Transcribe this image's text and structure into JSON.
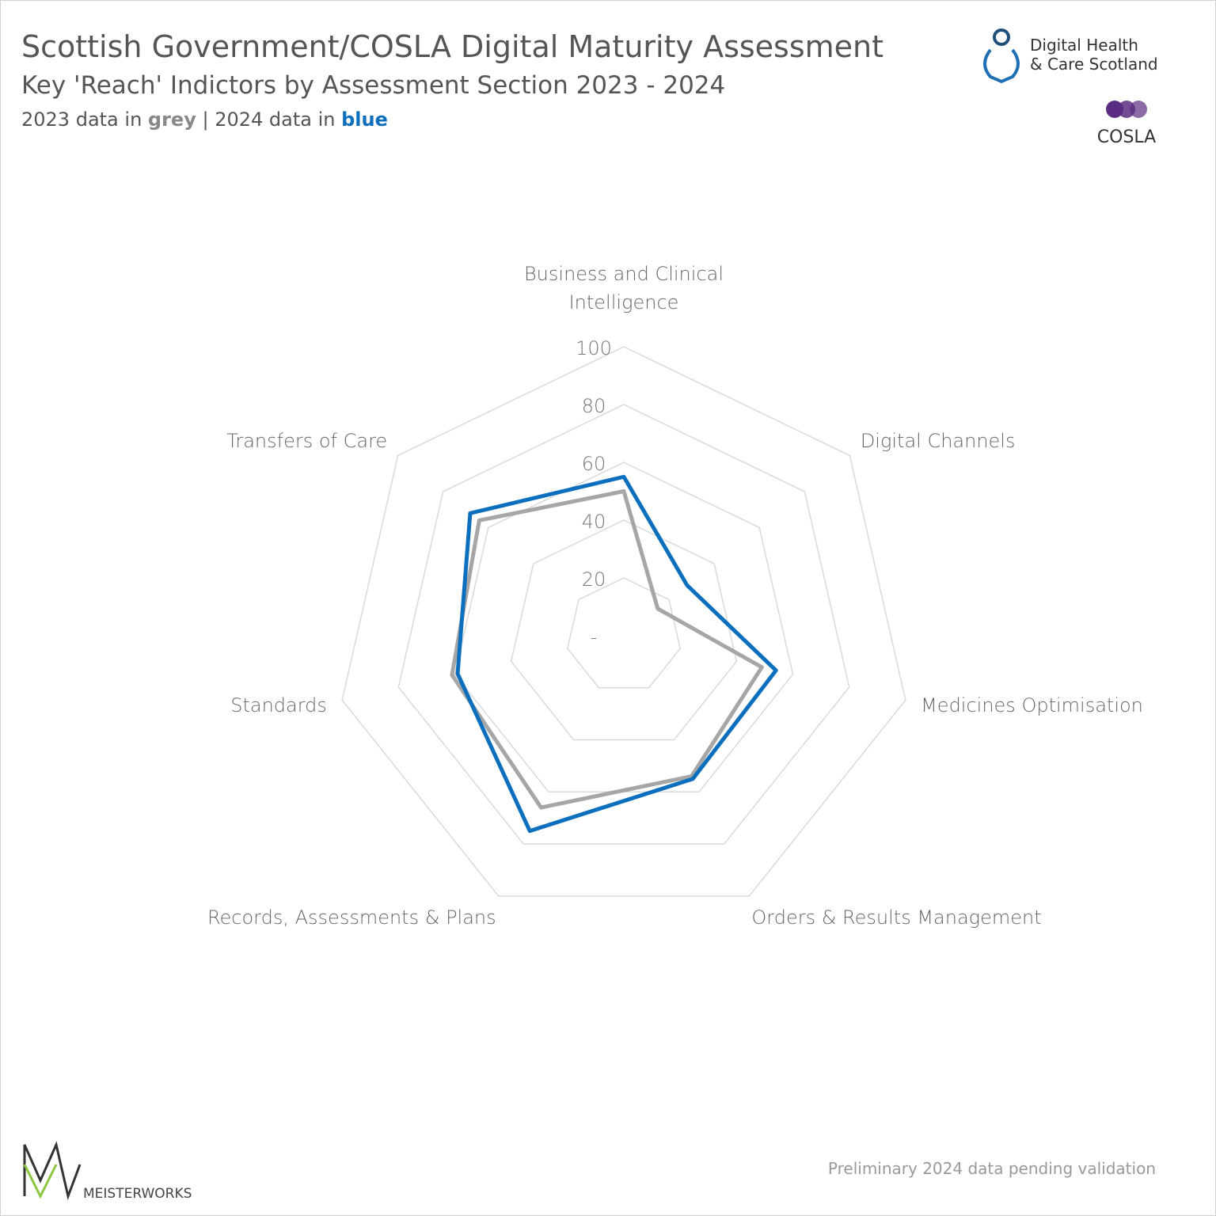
{
  "chart_data": {
    "type": "radar",
    "title": "Scottish Government/COSLA Digital Maturity Assessment",
    "subtitle": "Key 'Reach' Indictors by Assessment Section 2023 - 2024",
    "legend_note": [
      "2023 data in ",
      "grey",
      " | 2024 data in ",
      "blue"
    ],
    "categories": [
      "Business and Clinical Intelligence",
      "Digital Channels",
      "Medicines Optimisation",
      "Orders & Results Management",
      "Records, Assessments & Plans",
      "Standards",
      "Transfers of Care"
    ],
    "series": [
      {
        "name": "2023",
        "color": "#a6a6a6",
        "values": [
          50,
          15,
          49,
          54,
          66,
          61,
          64
        ]
      },
      {
        "name": "2024",
        "color": "#0b6fbe",
        "values": [
          55,
          28,
          54,
          55,
          75,
          59,
          68
        ]
      }
    ],
    "ylim": [
      0,
      100
    ],
    "yticks": [
      {
        "value": 0,
        "label": "-"
      },
      20,
      40,
      60,
      80,
      100
    ],
    "grid": true,
    "footnote": "Preliminary 2024 data pending validation"
  },
  "logos": {
    "dhcs": [
      "Digital Health",
      "& Care Scotland"
    ],
    "cosla": "COSLA",
    "meisterworks": "MEISTERWORKS"
  }
}
